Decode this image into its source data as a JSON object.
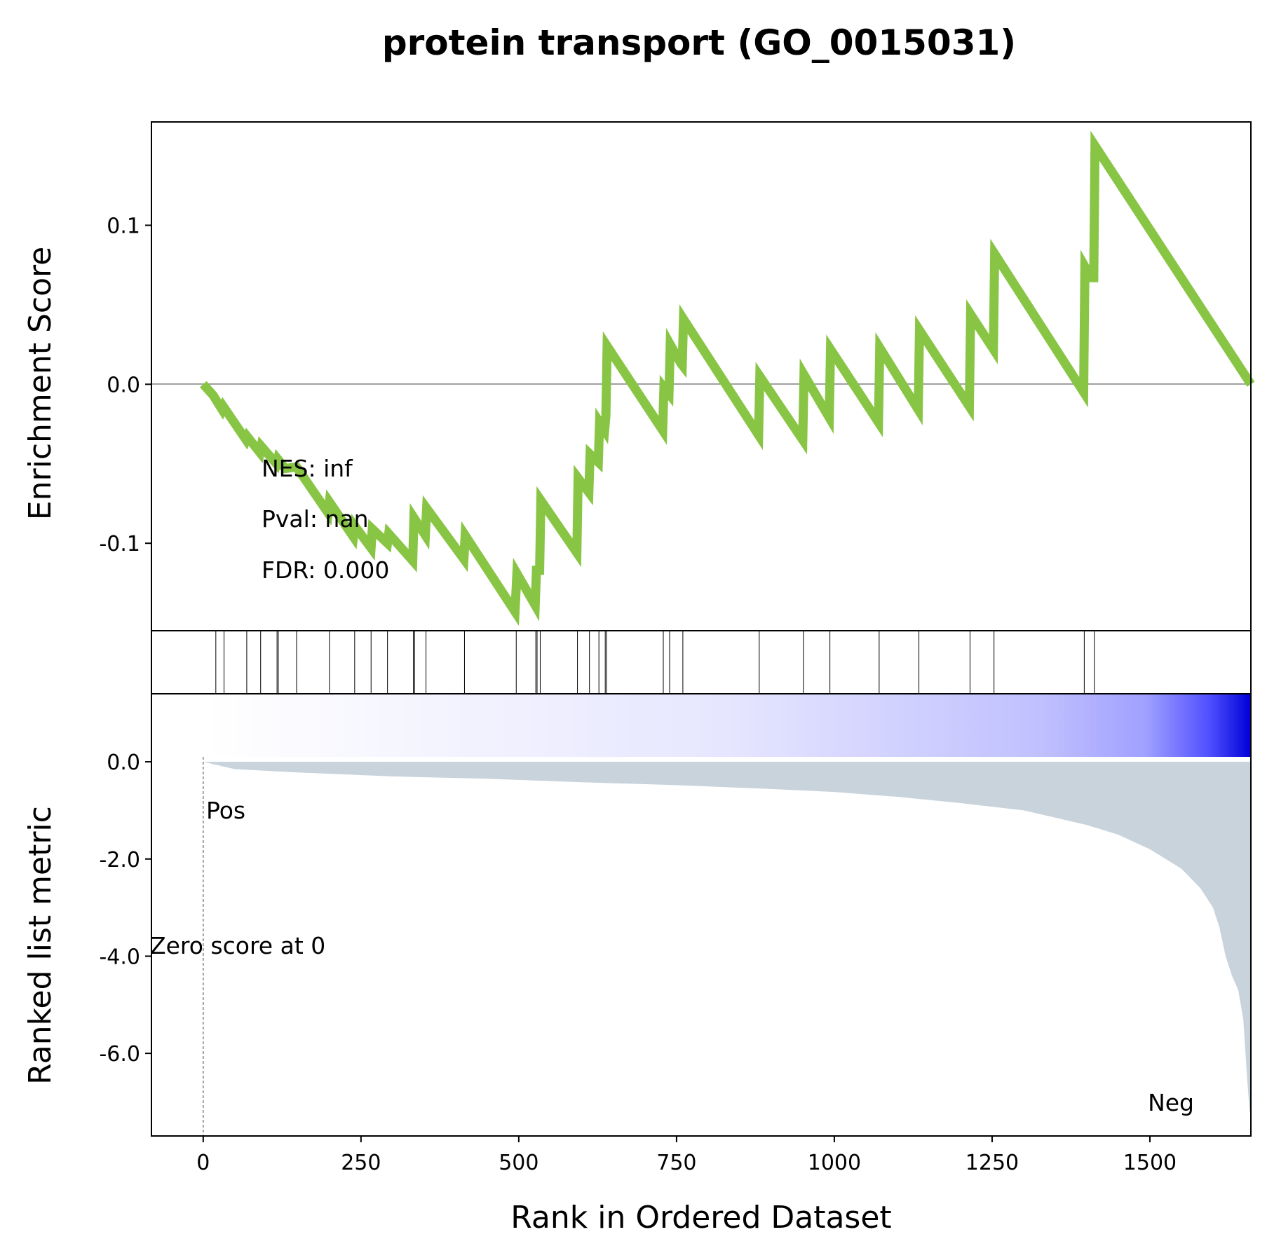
{
  "chart_data": {
    "type": "line",
    "title": "protein transport (GO_0015031)",
    "xlabel": "Rank in Ordered Dataset",
    "xlim": [
      -82,
      1660
    ],
    "x_ticks": [
      0,
      250,
      500,
      750,
      1000,
      1250,
      1500
    ],
    "x_tick_labels": [
      "0",
      "250",
      "500",
      "750",
      "1000",
      "1250",
      "1500"
    ],
    "enrichment": {
      "ylabel": "Enrichment Score",
      "ylim": [
        -0.155,
        0.165
      ],
      "y_ticks": [
        0.1,
        0.0,
        -0.1
      ],
      "y_tick_labels": [
        "0.1",
        "0.0",
        "-0.1"
      ],
      "zero_line": true,
      "line_color": "#88c544",
      "points": [
        [
          0,
          0.0
        ],
        [
          16,
          -0.007
        ],
        [
          19,
          -0.009
        ],
        [
          30,
          -0.016
        ],
        [
          32,
          -0.014
        ],
        [
          68,
          -0.035
        ],
        [
          70,
          -0.033
        ],
        [
          90,
          -0.043
        ],
        [
          92,
          -0.039
        ],
        [
          116,
          -0.05
        ],
        [
          118,
          -0.047
        ],
        [
          130,
          -0.053
        ],
        [
          148,
          -0.052
        ],
        [
          198,
          -0.081
        ],
        [
          200,
          -0.074
        ],
        [
          238,
          -0.096
        ],
        [
          240,
          -0.089
        ],
        [
          266,
          -0.103
        ],
        [
          268,
          -0.091
        ],
        [
          292,
          -0.1
        ],
        [
          294,
          -0.094
        ],
        [
          332,
          -0.111
        ],
        [
          334,
          -0.084
        ],
        [
          352,
          -0.095
        ],
        [
          354,
          -0.078
        ],
        [
          413,
          -0.11
        ],
        [
          415,
          -0.095
        ],
        [
          494,
          -0.143
        ],
        [
          497,
          -0.119
        ],
        [
          526,
          -0.139
        ],
        [
          528,
          -0.117
        ],
        [
          533,
          -0.117
        ],
        [
          535,
          -0.073
        ],
        [
          592,
          -0.106
        ],
        [
          594,
          -0.059
        ],
        [
          611,
          -0.068
        ],
        [
          613,
          -0.044
        ],
        [
          626,
          -0.049
        ],
        [
          628,
          -0.024
        ],
        [
          636,
          -0.029
        ],
        [
          638,
          -0.02
        ],
        [
          640,
          0.024
        ],
        [
          728,
          -0.029
        ],
        [
          730,
          -0.002
        ],
        [
          738,
          -0.006
        ],
        [
          740,
          0.025
        ],
        [
          757,
          0.013
        ],
        [
          759,
          0.012
        ],
        [
          761,
          0.041
        ],
        [
          880,
          -0.032
        ],
        [
          882,
          0.005
        ],
        [
          950,
          -0.035
        ],
        [
          952,
          0.006
        ],
        [
          992,
          -0.021
        ],
        [
          994,
          0.022
        ],
        [
          1070,
          -0.024
        ],
        [
          1072,
          0.023
        ],
        [
          1133,
          -0.016
        ],
        [
          1135,
          0.034
        ],
        [
          1214,
          -0.014
        ],
        [
          1216,
          0.044
        ],
        [
          1252,
          0.022
        ],
        [
          1254,
          0.082
        ],
        [
          1395,
          -0.005
        ],
        [
          1397,
          0.074
        ],
        [
          1407,
          0.067
        ],
        [
          1411,
          0.067
        ],
        [
          1413,
          0.15
        ],
        [
          1660,
          0.0
        ]
      ]
    },
    "hits": {
      "positions": [
        20,
        33,
        69,
        91,
        117,
        119,
        148,
        200,
        240,
        266,
        292,
        333,
        335,
        353,
        414,
        496,
        527,
        529,
        534,
        593,
        612,
        627,
        637,
        639,
        729,
        739,
        760,
        881,
        951,
        993,
        1071,
        1134,
        1215,
        1253,
        1396,
        1412
      ]
    },
    "ranked_metric": {
      "ylabel": "Ranked list metric",
      "ylim": [
        -7.7,
        1.4
      ],
      "y_ticks": [
        0.0,
        -2.0,
        -4.0,
        -6.0
      ],
      "y_tick_labels": [
        "0.0",
        "-2.0",
        "-4.0",
        "-6.0"
      ],
      "fill_color": "#c8d3dc",
      "points": [
        [
          0,
          0.0
        ],
        [
          50,
          -0.15
        ],
        [
          150,
          -0.22
        ],
        [
          300,
          -0.3
        ],
        [
          450,
          -0.35
        ],
        [
          600,
          -0.42
        ],
        [
          750,
          -0.48
        ],
        [
          900,
          -0.56
        ],
        [
          1000,
          -0.62
        ],
        [
          1100,
          -0.72
        ],
        [
          1200,
          -0.85
        ],
        [
          1300,
          -1.0
        ],
        [
          1400,
          -1.3
        ],
        [
          1450,
          -1.5
        ],
        [
          1500,
          -1.8
        ],
        [
          1550,
          -2.2
        ],
        [
          1580,
          -2.6
        ],
        [
          1600,
          -3.0
        ],
        [
          1610,
          -3.4
        ],
        [
          1620,
          -4.0
        ],
        [
          1630,
          -4.4
        ],
        [
          1640,
          -4.7
        ],
        [
          1648,
          -5.3
        ],
        [
          1654,
          -6.5
        ],
        [
          1658,
          -7.2
        ],
        [
          1660,
          -7.2
        ]
      ],
      "zero_score_label": "Zero score at 0",
      "pos_label": "Pos",
      "neg_label": "Neg",
      "pos_color": "#ff0000",
      "neg_color": "#0000ff"
    },
    "stats": {
      "nes": "NES: inf",
      "pval": "Pval: nan",
      "fdr": "FDR: 0.000"
    }
  }
}
